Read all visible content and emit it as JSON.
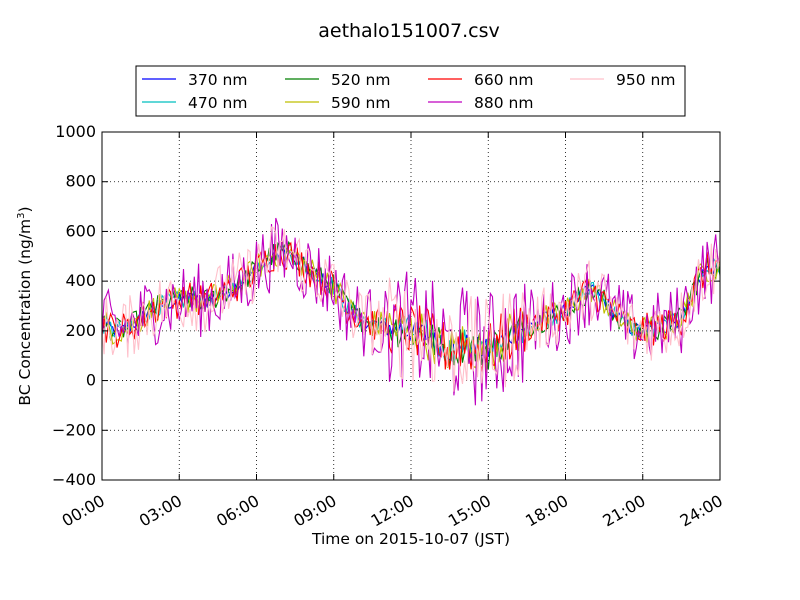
{
  "chart_data": {
    "type": "line",
    "title": "aethalo151007.csv",
    "xlabel": "Time on 2015-10-07 (JST)",
    "ylabel": {
      "base": "BC Concentration (ng/m",
      "sup": "3",
      "tail": ")"
    },
    "xlim": [
      0,
      24
    ],
    "ylim": [
      -400,
      1000
    ],
    "x_ticks": [
      0,
      3,
      6,
      9,
      12,
      15,
      18,
      21,
      24
    ],
    "x_tick_labels": [
      "00:00",
      "03:00",
      "06:00",
      "09:00",
      "12:00",
      "15:00",
      "18:00",
      "21:00",
      "24:00"
    ],
    "y_ticks": [
      -400,
      -200,
      0,
      200,
      400,
      600,
      800,
      1000
    ],
    "y_tick_labels": [
      "−400",
      "−200",
      "0",
      "200",
      "400",
      "600",
      "800",
      "1000"
    ],
    "grid": true,
    "legend_position": "top-center",
    "series": [
      {
        "name": "370 nm",
        "color": "#0000ff"
      },
      {
        "name": "470 nm",
        "color": "#00bfbf"
      },
      {
        "name": "520 nm",
        "color": "#007f00"
      },
      {
        "name": "590 nm",
        "color": "#bfbf00"
      },
      {
        "name": "660 nm",
        "color": "#ff0000"
      },
      {
        "name": "880 nm",
        "color": "#bf00bf"
      },
      {
        "name": "950 nm",
        "color": "#ffc0cb"
      }
    ],
    "baseline": {
      "x": [
        0,
        0.5,
        1,
        1.5,
        2,
        2.5,
        3,
        3.5,
        4,
        4.5,
        5,
        5.5,
        6,
        6.5,
        7,
        7.5,
        8,
        8.5,
        9,
        9.5,
        10,
        10.5,
        11,
        11.5,
        12,
        12.5,
        13,
        13.5,
        14,
        14.5,
        15,
        15.5,
        16,
        16.5,
        17,
        17.5,
        18,
        18.5,
        19,
        19.5,
        20,
        20.5,
        21,
        21.5,
        22,
        22.5,
        23,
        23.5,
        24
      ],
      "y": [
        230,
        200,
        210,
        250,
        290,
        310,
        320,
        330,
        320,
        340,
        370,
        400,
        450,
        500,
        520,
        500,
        450,
        410,
        380,
        300,
        250,
        230,
        220,
        210,
        200,
        190,
        150,
        120,
        150,
        130,
        120,
        160,
        190,
        220,
        240,
        260,
        280,
        330,
        370,
        320,
        260,
        210,
        200,
        210,
        220,
        250,
        380,
        450,
        460
      ]
    },
    "sample_interval_min": 5,
    "noise_amplitude": {
      "370 nm": 30,
      "470 nm": 40,
      "520 nm": 50,
      "590 nm": 60,
      "660 nm": 70,
      "880 nm": 150,
      "950 nm": 130
    }
  }
}
